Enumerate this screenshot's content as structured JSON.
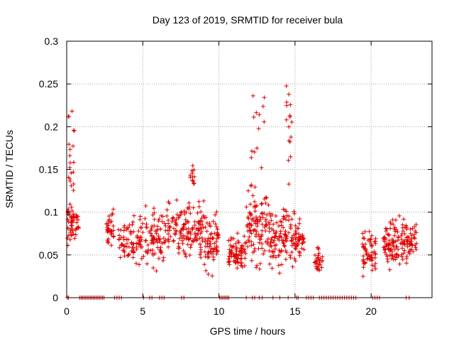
{
  "chart_data": {
    "type": "scatter",
    "title": "Day 123 of 2019, SRMTID for receiver bula",
    "xlabel": "GPS time / hours",
    "ylabel": "SRMTID / TECUs",
    "xlim": [
      0,
      24
    ],
    "ylim": [
      0,
      0.3
    ],
    "x_ticks": [
      0,
      5,
      10,
      15,
      20
    ],
    "x_tick_labels": [
      "0",
      "5",
      "10",
      "15",
      "20"
    ],
    "y_ticks": [
      0,
      0.05,
      0.1,
      0.15,
      0.2,
      0.25,
      0.3
    ],
    "y_tick_labels": [
      "0",
      "0.05",
      "0.1",
      "0.15",
      "0.2",
      "0.25",
      "0.3"
    ],
    "grid": true,
    "marker": "plus",
    "color": "#e00000",
    "series": [
      {
        "name": "SRMTID",
        "clusters": [
          {
            "x_range": [
              0.0,
              0.8
            ],
            "y_base": 0.085,
            "y_spread": 0.02,
            "n": 55
          },
          {
            "x_range": [
              0.1,
              0.5
            ],
            "y_base": 0.16,
            "y_spread": 0.06,
            "n": 22
          },
          {
            "x_range": [
              2.6,
              3.1
            ],
            "y_base": 0.08,
            "y_spread": 0.02,
            "n": 35
          },
          {
            "x_range": [
              3.4,
              5.0
            ],
            "y_base": 0.065,
            "y_spread": 0.025,
            "n": 80
          },
          {
            "x_range": [
              5.0,
              6.5
            ],
            "y_base": 0.07,
            "y_spread": 0.03,
            "n": 80
          },
          {
            "x_range": [
              6.5,
              7.8
            ],
            "y_base": 0.08,
            "y_spread": 0.025,
            "n": 70
          },
          {
            "x_range": [
              7.8,
              9.0
            ],
            "y_base": 0.08,
            "y_spread": 0.03,
            "n": 80
          },
          {
            "x_range": [
              8.1,
              8.4
            ],
            "y_base": 0.14,
            "y_spread": 0.02,
            "n": 12
          },
          {
            "x_range": [
              9.0,
              10.0
            ],
            "y_base": 0.065,
            "y_spread": 0.03,
            "n": 70
          },
          {
            "x_range": [
              10.6,
              11.8
            ],
            "y_base": 0.05,
            "y_spread": 0.02,
            "n": 80
          },
          {
            "x_range": [
              11.8,
              13.3
            ],
            "y_base": 0.08,
            "y_spread": 0.035,
            "n": 100
          },
          {
            "x_range": [
              12.1,
              13.0
            ],
            "y_base": 0.18,
            "y_spread": 0.06,
            "n": 18
          },
          {
            "x_range": [
              13.3,
              15.0
            ],
            "y_base": 0.07,
            "y_spread": 0.03,
            "n": 110
          },
          {
            "x_range": [
              14.4,
              14.8
            ],
            "y_base": 0.2,
            "y_spread": 0.06,
            "n": 16
          },
          {
            "x_range": [
              15.0,
              15.6
            ],
            "y_base": 0.065,
            "y_spread": 0.02,
            "n": 45
          },
          {
            "x_range": [
              16.3,
              16.8
            ],
            "y_base": 0.045,
            "y_spread": 0.015,
            "n": 30
          },
          {
            "x_range": [
              19.4,
              20.3
            ],
            "y_base": 0.055,
            "y_spread": 0.02,
            "n": 60
          },
          {
            "x_range": [
              20.8,
              22.2
            ],
            "y_base": 0.065,
            "y_spread": 0.025,
            "n": 100
          },
          {
            "x_range": [
              22.2,
              23.0
            ],
            "y_base": 0.065,
            "y_spread": 0.02,
            "n": 50
          }
        ],
        "zero_points": [
          0.05,
          0.12,
          0.85,
          0.95,
          1.05,
          1.15,
          1.25,
          1.35,
          1.45,
          1.55,
          1.65,
          1.75,
          1.85,
          1.95,
          2.05,
          2.15,
          2.25,
          2.35,
          2.45,
          3.15,
          3.3,
          3.45,
          3.6,
          5.05,
          5.45,
          5.6,
          6.1,
          6.25,
          6.4,
          7.55,
          7.7,
          10.05,
          10.15,
          10.25,
          10.35,
          10.45,
          10.55,
          10.65,
          11.8,
          12.2,
          12.35,
          12.65,
          12.85,
          13.55,
          14.0,
          14.55,
          15.1,
          15.2,
          15.75,
          15.9,
          16.05,
          16.2,
          16.6,
          16.75,
          16.9,
          17.05,
          17.2,
          17.35,
          17.5,
          17.65,
          17.8,
          17.95,
          18.1,
          18.25,
          18.4,
          18.55,
          18.7,
          18.85,
          19.0,
          20.1,
          20.25,
          20.4,
          20.55,
          22.3,
          22.5
        ]
      }
    ]
  }
}
